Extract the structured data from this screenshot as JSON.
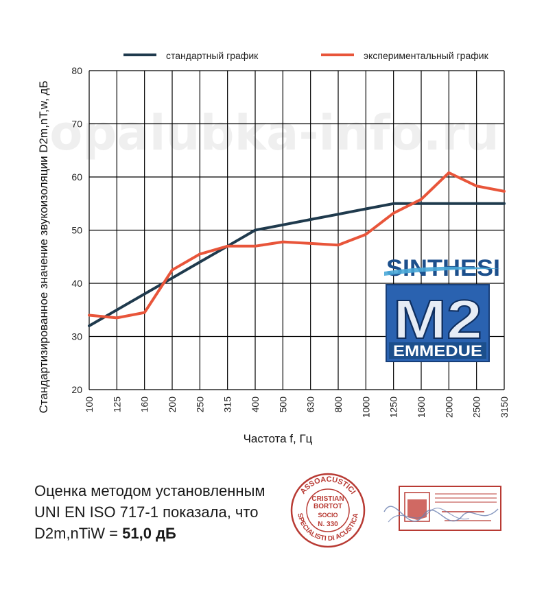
{
  "watermark": "opalubka-info.ru",
  "caption": {
    "line1": "Оценка методом установленным",
    "line2": "UNI EN ISO 717-1 показала, что",
    "line3_prefix": "D2m,nTiW = ",
    "line3_value": "51,0 дБ"
  },
  "logos": {
    "synthesi": "SINTHESI",
    "m2": "M2",
    "emmedue": "EMMEDUE"
  },
  "stamps": {
    "round_top": "ASSOACUSTICI",
    "round_bottom": "SPECIALISTI DI ACUSTICA",
    "round_name1": "CRISTIAN",
    "round_name2": "BORTOT",
    "round_socio": "SOCIO",
    "round_number": "N. 330"
  },
  "colors": {
    "standard": "#1f3a4d",
    "experimental": "#e8553a",
    "grid": "#000000",
    "stamp": "#b83a33",
    "logo_blue": "#1c4f8c"
  },
  "chart_data": {
    "type": "line",
    "categories": [
      "100",
      "125",
      "160",
      "200",
      "250",
      "315",
      "400",
      "500",
      "630",
      "800",
      "1000",
      "1250",
      "1600",
      "2000",
      "2500",
      "3150"
    ],
    "series": [
      {
        "name": "стандартный график",
        "color": "#1f3a4d",
        "values": [
          32,
          35,
          38,
          41,
          44,
          47,
          50,
          51,
          52,
          53,
          54,
          55,
          55,
          55,
          55,
          55
        ]
      },
      {
        "name": "экспериментальный график",
        "color": "#e8553a",
        "values": [
          34,
          33.5,
          34.5,
          42.5,
          45.5,
          47,
          47,
          47.8,
          47.5,
          47.2,
          49.2,
          53.2,
          55.8,
          60.8,
          58.3,
          57.3
        ]
      }
    ],
    "xlabel": "Частота f, Гц",
    "ylabel": "Стандартизированное значение звукоизоляции D2m,nT,w, дБ",
    "yticks": [
      "20",
      "30",
      "40",
      "50",
      "60",
      "70",
      "80"
    ],
    "ylim": [
      20,
      80
    ],
    "grid": true,
    "legend": "top"
  }
}
